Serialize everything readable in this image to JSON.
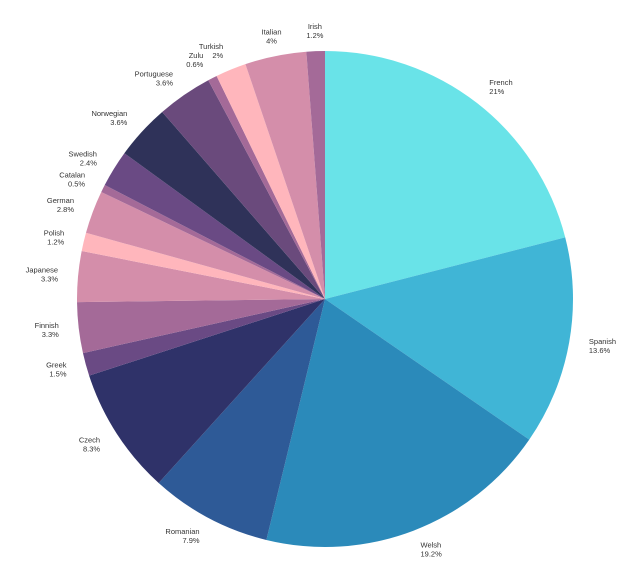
{
  "chart_data": {
    "type": "pie",
    "start_angle_deg": 0,
    "direction": "clockwise",
    "slices": [
      {
        "label": "French",
        "value": 21,
        "pct_text": "21%",
        "color": "#69E3E8"
      },
      {
        "label": "Spanish",
        "value": 13.6,
        "pct_text": "13.6%",
        "color": "#40B5D6"
      },
      {
        "label": "Welsh",
        "value": 19.2,
        "pct_text": "19.2%",
        "color": "#2B8ABA"
      },
      {
        "label": "Romanian",
        "value": 7.9,
        "pct_text": "7.9%",
        "color": "#2E5A97"
      },
      {
        "label": "Czech",
        "value": 8.3,
        "pct_text": "8.3%",
        "color": "#2F3269"
      },
      {
        "label": "Greek",
        "value": 1.5,
        "pct_text": "1.5%",
        "color": "#6A4A84"
      },
      {
        "label": "Finnish",
        "value": 3.3,
        "pct_text": "3.3%",
        "color": "#A46A98"
      },
      {
        "label": "Japanese",
        "value": 3.3,
        "pct_text": "3.3%",
        "color": "#D48EAA"
      },
      {
        "label": "Polish",
        "value": 1.2,
        "pct_text": "1.2%",
        "color": "#FFB6BC"
      },
      {
        "label": "German",
        "value": 2.8,
        "pct_text": "2.8%",
        "color": "#D48EAA"
      },
      {
        "label": "Catalan",
        "value": 0.5,
        "pct_text": "0.5%",
        "color": "#A46A98"
      },
      {
        "label": "Swedish",
        "value": 2.4,
        "pct_text": "2.4%",
        "color": "#6A4A84"
      },
      {
        "label": "Norwegian",
        "value": 3.6,
        "pct_text": "3.6%",
        "color": "#2F3259"
      },
      {
        "label": "Portuguese",
        "value": 3.6,
        "pct_text": "3.6%",
        "color": "#6A4A7C"
      },
      {
        "label": "Zulu",
        "value": 0.6,
        "pct_text": "0.6%",
        "color": "#A46A98"
      },
      {
        "label": "Turkish",
        "value": 2,
        "pct_text": "2%",
        "color": "#FFB6BC"
      },
      {
        "label": "Italian",
        "value": 4,
        "pct_text": "4%",
        "color": "#D48EAA"
      },
      {
        "label": "Irish",
        "value": 1.2,
        "pct_text": "1.2%",
        "color": "#A46A98"
      }
    ]
  }
}
